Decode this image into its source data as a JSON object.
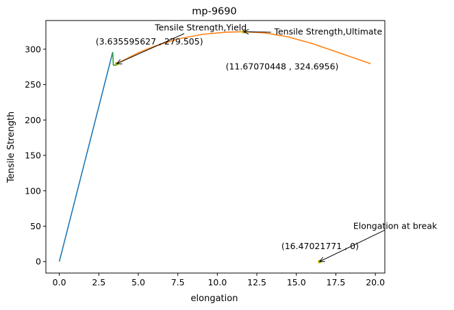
{
  "chart_data": {
    "type": "line",
    "title": "mp-9690",
    "xlabel": "elongation",
    "ylabel": "Tensile Strength",
    "xlim": [
      -0.85,
      20.6
    ],
    "ylim": [
      -16.2,
      340.5
    ],
    "xticks": [
      0.0,
      2.5,
      5.0,
      7.5,
      10.0,
      12.5,
      15.0,
      17.5,
      20.0
    ],
    "xtick_labels": [
      "0.0",
      "2.5",
      "5.0",
      "7.5",
      "10.0",
      "12.5",
      "15.0",
      "17.5",
      "20.0"
    ],
    "yticks": [
      0,
      50,
      100,
      150,
      200,
      250,
      300
    ],
    "ytick_labels": [
      "0",
      "50",
      "100",
      "150",
      "200",
      "250",
      "300"
    ],
    "grid": false,
    "series": [
      {
        "color": "#1f77b4",
        "points": [
          [
            0.0,
            0.0
          ],
          [
            3.38,
            296.0
          ]
        ]
      },
      {
        "color": "#2ca02c",
        "points": [
          [
            3.38,
            296.0
          ],
          [
            3.42,
            277.5
          ],
          [
            3.64,
            277.5
          ],
          [
            3.64,
            279.5
          ]
        ]
      },
      {
        "color": "#ff7f0e",
        "points": [
          [
            3.64,
            279.5
          ],
          [
            5.0,
            295.0
          ],
          [
            6.0,
            304.0
          ],
          [
            7.5,
            314.5
          ],
          [
            9.0,
            320.8
          ],
          [
            10.5,
            324.0
          ],
          [
            11.67,
            324.7
          ],
          [
            13.0,
            323.0
          ],
          [
            14.5,
            317.3
          ],
          [
            16.0,
            308.0
          ],
          [
            17.5,
            296.5
          ],
          [
            19.0,
            285.0
          ],
          [
            19.7,
            279.5
          ]
        ]
      }
    ],
    "points": [
      {
        "x": 3.635595627,
        "y": 279.505,
        "color": "#bfbf00"
      },
      {
        "x": 11.67070448,
        "y": 324.6956,
        "color": "#bfbf00"
      },
      {
        "x": 16.47021771,
        "y": 0,
        "color": "#bfbf00"
      }
    ],
    "annotations": [
      {
        "label": "Tensile Strength,Yield",
        "point_label": "(3.635595627 , 279.505)",
        "x": 3.635595627,
        "y": 279.505,
        "text_x": 8.95,
        "text_y": 326.5,
        "anchor": "middle",
        "pl_x": 5.7,
        "pl_y": 306.5,
        "tail_x": 7.9,
        "tail_y": 322.0
      },
      {
        "label": "Tensile Strength,Ultimate",
        "point_label": "(11.67070448 , 324.6956)",
        "x": 11.67070448,
        "y": 324.6956,
        "text_x": 13.6,
        "text_y": 320.5,
        "anchor": "start",
        "pl_x": 14.1,
        "pl_y": 271.5,
        "tail_x": 13.4,
        "tail_y": 324.0
      },
      {
        "label": "Elongation at break",
        "point_label": "(16.47021771 , 0)",
        "x": 16.47021771,
        "y": 0,
        "text_x": 18.6,
        "text_y": 46.0,
        "anchor": "start",
        "pl_x": 16.5,
        "pl_y": 17.5,
        "tail_x": 20.6,
        "tail_y": 44.5
      }
    ]
  }
}
